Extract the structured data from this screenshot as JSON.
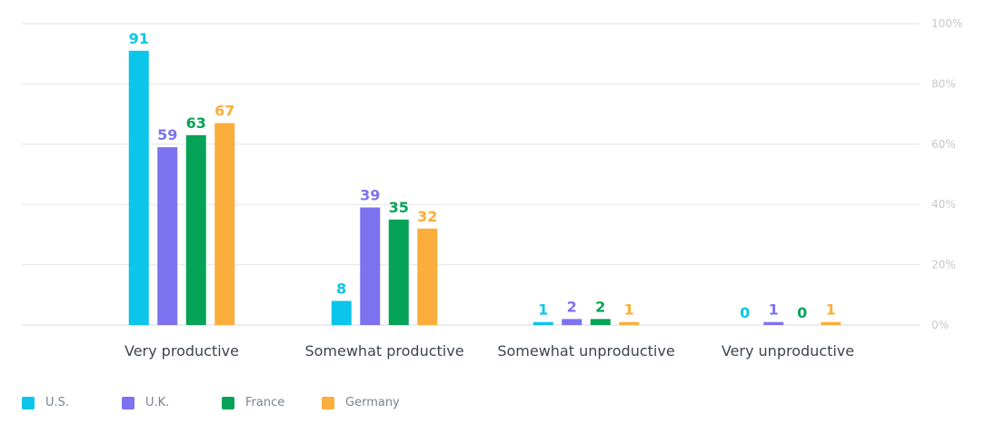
{
  "chart_data": {
    "type": "bar",
    "categories": [
      "Very productive",
      "Somewhat productive",
      "Somewhat unproductive",
      "Very unproductive"
    ],
    "series": [
      {
        "name": "U.S.",
        "color": "#0bc5ea",
        "values": [
          91,
          8,
          1,
          0
        ]
      },
      {
        "name": "U.K.",
        "color": "#7d73f0",
        "values": [
          59,
          39,
          2,
          1
        ]
      },
      {
        "name": "France",
        "color": "#05a357",
        "values": [
          63,
          35,
          2,
          0
        ]
      },
      {
        "name": "Germany",
        "color": "#fbae3c",
        "values": [
          67,
          32,
          1,
          1
        ]
      }
    ],
    "y_ticks": [
      "0%",
      "20%",
      "40%",
      "60%",
      "80%",
      "100%"
    ],
    "ylim": [
      0,
      100
    ],
    "grid": true,
    "legend_position": "bottom-left"
  }
}
